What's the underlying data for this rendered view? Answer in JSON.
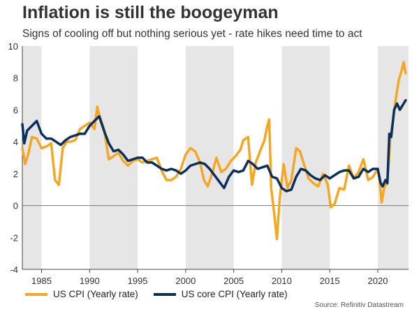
{
  "header": {
    "title": "Inflation is still the boogeyman",
    "subtitle": "Signs of cooling off but nothing serious yet - rate hikes need time to act"
  },
  "footer": {
    "source": "Source: Refinitiv Datastream"
  },
  "chart_data": {
    "type": "line",
    "title": "Inflation is still the boogeyman",
    "xlabel": "",
    "ylabel": "",
    "xlim": [
      1983.0,
      2023.2
    ],
    "ylim": [
      -4,
      10
    ],
    "yticks": [
      -4,
      -2,
      0,
      2,
      4,
      6,
      8,
      10
    ],
    "xticks": [
      1985,
      1990,
      1995,
      2000,
      2005,
      2010,
      2015,
      2020
    ],
    "shaded_periods": [
      [
        1983.0,
        1985.0
      ],
      [
        1990.0,
        1995.0
      ],
      [
        2000.0,
        2005.0
      ],
      [
        2010.0,
        2015.0
      ],
      [
        2020.0,
        2023.2
      ]
    ],
    "zero_line": true,
    "legend_position": "bottom-left",
    "series": [
      {
        "name": "US CPI (Yearly rate)",
        "color": "#F5A623",
        "x": [
          1983.0,
          1983.3,
          1983.6,
          1984.0,
          1984.5,
          1985.0,
          1985.5,
          1986.0,
          1986.4,
          1986.8,
          1987.2,
          1987.6,
          1988.0,
          1988.5,
          1989.0,
          1989.5,
          1990.0,
          1990.5,
          1990.8,
          1991.0,
          1991.5,
          1992.0,
          1992.5,
          1993.0,
          1993.5,
          1994.0,
          1994.5,
          1995.0,
          1995.5,
          1996.0,
          1996.5,
          1997.0,
          1997.5,
          1998.0,
          1998.5,
          1999.0,
          1999.5,
          2000.0,
          2000.5,
          2001.0,
          2001.5,
          2001.9,
          2002.3,
          2002.8,
          2003.2,
          2003.7,
          2004.2,
          2004.7,
          2005.2,
          2005.7,
          2006.0,
          2006.5,
          2006.9,
          2007.3,
          2007.8,
          2008.2,
          2008.5,
          2008.7,
          2008.9,
          2009.2,
          2009.5,
          2009.8,
          2010.2,
          2010.6,
          2011.0,
          2011.5,
          2011.9,
          2012.3,
          2012.8,
          2013.3,
          2013.8,
          2014.3,
          2014.8,
          2015.1,
          2015.5,
          2016.0,
          2016.5,
          2017.0,
          2017.5,
          2018.0,
          2018.5,
          2019.0,
          2019.5,
          2020.0,
          2020.2,
          2020.4,
          2020.7,
          2021.0,
          2021.3,
          2021.6,
          2021.9,
          2022.2,
          2022.4,
          2022.5,
          2022.7,
          2022.9
        ],
        "values": [
          3.6,
          2.6,
          3.2,
          4.3,
          4.2,
          3.6,
          3.7,
          3.9,
          1.6,
          1.3,
          3.6,
          4.0,
          4.0,
          4.1,
          4.8,
          5.0,
          5.2,
          4.8,
          6.2,
          5.7,
          4.8,
          2.9,
          3.1,
          3.3,
          2.8,
          2.5,
          2.8,
          2.9,
          2.7,
          2.8,
          2.9,
          3.0,
          2.2,
          1.6,
          1.6,
          1.8,
          2.3,
          3.2,
          3.6,
          3.4,
          2.7,
          1.6,
          1.2,
          2.1,
          3.0,
          2.1,
          2.3,
          2.8,
          3.1,
          3.5,
          4.1,
          4.3,
          1.3,
          2.7,
          3.5,
          4.1,
          5.0,
          5.4,
          1.1,
          -0.4,
          -2.1,
          0.5,
          2.6,
          1.1,
          1.6,
          3.6,
          3.4,
          2.6,
          1.7,
          1.4,
          1.2,
          2.0,
          1.3,
          -0.1,
          0.1,
          1.1,
          1.0,
          2.5,
          1.7,
          2.1,
          2.9,
          1.6,
          1.8,
          2.3,
          1.5,
          0.2,
          1.2,
          1.4,
          4.2,
          5.4,
          6.8,
          7.9,
          8.3,
          8.5,
          9.0,
          8.3
        ]
      },
      {
        "name": "US core CPI (Yearly rate)",
        "color": "#0B2F5B",
        "x": [
          1983.0,
          1983.2,
          1983.5,
          1984.0,
          1984.5,
          1985.0,
          1985.5,
          1986.0,
          1986.5,
          1987.0,
          1987.5,
          1988.0,
          1988.5,
          1989.0,
          1989.5,
          1990.0,
          1990.5,
          1991.0,
          1991.5,
          1992.0,
          1992.5,
          1993.0,
          1993.5,
          1994.0,
          1994.5,
          1995.0,
          1995.5,
          1996.0,
          1996.5,
          1997.0,
          1997.5,
          1998.0,
          1998.5,
          1999.0,
          1999.5,
          2000.0,
          2000.5,
          2001.0,
          2001.5,
          2002.0,
          2002.5,
          2003.0,
          2003.5,
          2004.0,
          2004.5,
          2005.0,
          2005.5,
          2006.0,
          2006.5,
          2007.0,
          2007.5,
          2008.0,
          2008.5,
          2009.0,
          2009.5,
          2010.0,
          2010.5,
          2011.0,
          2011.5,
          2012.0,
          2012.5,
          2013.0,
          2013.5,
          2014.0,
          2014.5,
          2015.0,
          2015.5,
          2016.0,
          2016.5,
          2017.0,
          2017.5,
          2018.0,
          2018.5,
          2019.0,
          2019.5,
          2020.0,
          2020.3,
          2020.5,
          2020.8,
          2021.0,
          2021.2,
          2021.4,
          2021.7,
          2022.0,
          2022.3,
          2022.6,
          2022.9
        ],
        "values": [
          5.1,
          3.9,
          4.7,
          5.0,
          5.3,
          4.5,
          4.2,
          4.2,
          4.0,
          3.8,
          4.1,
          4.3,
          4.4,
          4.5,
          4.5,
          5.0,
          5.3,
          5.6,
          4.7,
          3.9,
          3.4,
          3.5,
          3.2,
          2.8,
          2.9,
          3.0,
          3.0,
          2.7,
          2.7,
          2.5,
          2.3,
          2.2,
          2.3,
          2.2,
          2.0,
          2.2,
          2.5,
          2.6,
          2.7,
          2.6,
          2.3,
          1.9,
          1.5,
          1.1,
          1.8,
          2.2,
          2.1,
          2.2,
          2.8,
          2.6,
          2.3,
          2.4,
          2.5,
          1.8,
          1.7,
          1.1,
          0.9,
          1.0,
          1.8,
          2.3,
          2.2,
          1.9,
          1.7,
          1.6,
          1.9,
          1.7,
          1.9,
          2.1,
          2.2,
          2.2,
          1.7,
          1.8,
          2.3,
          2.1,
          2.3,
          2.3,
          1.4,
          1.2,
          1.6,
          1.4,
          4.5,
          4.3,
          6.0,
          6.4,
          6.0,
          6.3,
          6.6
        ]
      }
    ]
  }
}
